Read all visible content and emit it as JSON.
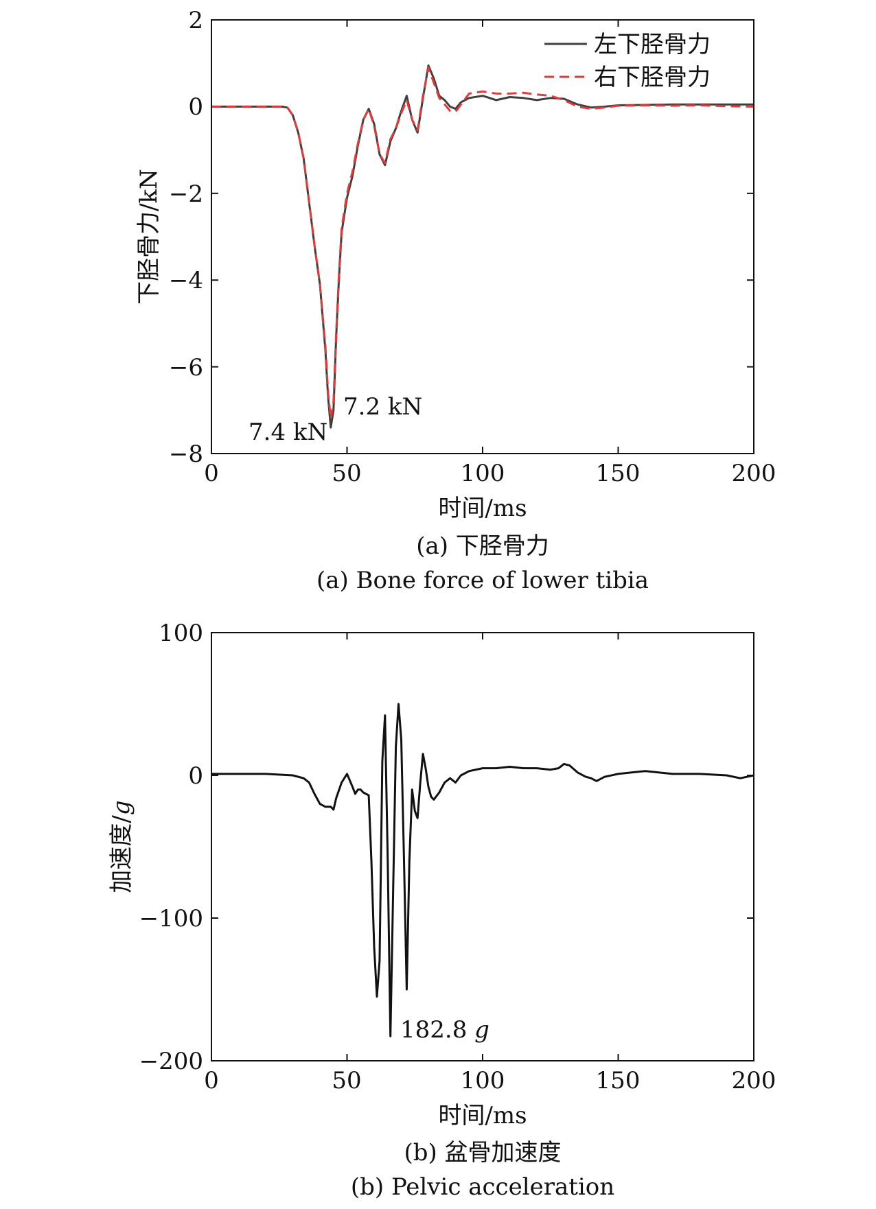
{
  "chart_data": [
    {
      "type": "line",
      "xlabel": "时间/ms",
      "ylabel": "下胫骨力/kN",
      "xlim": [
        0,
        200
      ],
      "ylim": [
        -8,
        2
      ],
      "xticks": [
        0,
        50,
        100,
        150,
        200
      ],
      "yticks": [
        2,
        0,
        -2,
        -4,
        -6,
        -8
      ],
      "xtick_labels": [
        "0",
        "50",
        "100",
        "150",
        "200"
      ],
      "ytick_labels": [
        "2",
        "0",
        "−2",
        "−4",
        "−6",
        "−8"
      ],
      "legend_position": "top-right",
      "caption_cn": "(a) 下胫骨力",
      "caption_en": "(a)  Bone force of lower tibia",
      "annotations": [
        {
          "text": "7.4 kN",
          "x": 44.5,
          "y": -7.4
        },
        {
          "text": "7.2 kN",
          "x": 44.5,
          "y": -7.2
        }
      ],
      "series": [
        {
          "name": "左下胫骨力",
          "color": "#3f3f3f",
          "style": "solid",
          "x": [
            0,
            26,
            28,
            30,
            32,
            34,
            36,
            38,
            40,
            42,
            43,
            44,
            45,
            46,
            47,
            48,
            50,
            52,
            54,
            56,
            58,
            60,
            62,
            64,
            66,
            68,
            70,
            72,
            74,
            76,
            78,
            80,
            82,
            84,
            86,
            88,
            90,
            92,
            95,
            100,
            105,
            110,
            115,
            120,
            125,
            130,
            135,
            140,
            145,
            150,
            160,
            170,
            180,
            190,
            200
          ],
          "y": [
            0,
            0,
            -0.02,
            -0.2,
            -0.6,
            -1.2,
            -2.2,
            -3.2,
            -4.1,
            -5.6,
            -6.7,
            -7.4,
            -7.0,
            -5.3,
            -4.0,
            -2.9,
            -2.1,
            -1.6,
            -0.9,
            -0.3,
            -0.05,
            -0.4,
            -1.1,
            -1.35,
            -0.8,
            -0.5,
            -0.1,
            0.25,
            -0.3,
            -0.6,
            0.2,
            0.95,
            0.65,
            0.25,
            0.15,
            0.0,
            -0.05,
            0.1,
            0.2,
            0.25,
            0.15,
            0.22,
            0.2,
            0.15,
            0.2,
            0.18,
            0.05,
            -0.02,
            0.0,
            0.03,
            0.04,
            0.05,
            0.05,
            0.05,
            0.05
          ]
        },
        {
          "name": "右下胫骨力",
          "color": "#e03a3a",
          "style": "dashed",
          "x": [
            0,
            26,
            28,
            30,
            32,
            34,
            36,
            38,
            40,
            42,
            43,
            44,
            45,
            46,
            47,
            48,
            50,
            52,
            54,
            56,
            58,
            60,
            62,
            64,
            66,
            68,
            70,
            72,
            74,
            76,
            78,
            80,
            82,
            84,
            86,
            88,
            90,
            92,
            95,
            100,
            105,
            110,
            115,
            120,
            125,
            130,
            135,
            140,
            145,
            150,
            160,
            170,
            180,
            190,
            200
          ],
          "y": [
            0,
            0,
            -0.02,
            -0.2,
            -0.6,
            -1.2,
            -2.2,
            -3.2,
            -4.1,
            -5.5,
            -6.6,
            -7.2,
            -6.8,
            -5.2,
            -3.9,
            -2.8,
            -2.0,
            -1.5,
            -0.85,
            -0.3,
            -0.05,
            -0.45,
            -1.1,
            -1.3,
            -0.75,
            -0.5,
            -0.15,
            0.15,
            -0.3,
            -0.55,
            0.25,
            0.9,
            0.55,
            0.2,
            0.05,
            -0.1,
            -0.12,
            0.05,
            0.3,
            0.35,
            0.3,
            0.3,
            0.32,
            0.28,
            0.25,
            0.15,
            0.0,
            -0.05,
            -0.02,
            0.02,
            0.03,
            0.02,
            0.03,
            0.01,
            0.0
          ]
        }
      ]
    },
    {
      "type": "line",
      "xlabel": "时间/ms",
      "ylabel": "加速度/g",
      "ylabel_main": "加速度/",
      "ylabel_unit": "g",
      "xlim": [
        0,
        200
      ],
      "ylim": [
        -200,
        100
      ],
      "xticks": [
        0,
        50,
        100,
        150,
        200
      ],
      "yticks": [
        100,
        0,
        -100,
        -200
      ],
      "xtick_labels": [
        "0",
        "50",
        "100",
        "150",
        "200"
      ],
      "ytick_labels": [
        "100",
        "0",
        "−100",
        "−200"
      ],
      "caption_cn": "(b) 盆骨加速度",
      "caption_en": "(b) Pelvic acceleration",
      "annotations": [
        {
          "text": "182.8 g",
          "value": "182.8",
          "unit": "g",
          "x": 65,
          "y": -182.8
        }
      ],
      "series": [
        {
          "color": "#111111",
          "style": "solid",
          "x": [
            0,
            10,
            20,
            30,
            34,
            36,
            38,
            40,
            42,
            44,
            45,
            46,
            48,
            50,
            52,
            53,
            54,
            55,
            56,
            58,
            59,
            60,
            61,
            62,
            63,
            64,
            65,
            66,
            67,
            68,
            69,
            70,
            71,
            72,
            73,
            74,
            75,
            76,
            77,
            78,
            79,
            80,
            81,
            82,
            84,
            86,
            88,
            90,
            92,
            95,
            100,
            105,
            110,
            115,
            120,
            125,
            128,
            130,
            132,
            135,
            138,
            140,
            142,
            145,
            150,
            155,
            160,
            170,
            180,
            190,
            195,
            200
          ],
          "y": [
            1,
            1,
            1,
            0,
            -2,
            -5,
            -13,
            -20,
            -22,
            -22,
            -24,
            -16,
            -5,
            1,
            -8,
            -13,
            -10,
            -10,
            -12,
            -14,
            -60,
            -120,
            -155,
            -130,
            10,
            42,
            -60,
            -182.8,
            -80,
            20,
            50,
            25,
            -60,
            -150,
            -60,
            -10,
            -25,
            -30,
            -5,
            15,
            5,
            -8,
            -15,
            -17,
            -12,
            -5,
            -2,
            -5,
            0,
            3,
            5,
            5,
            6,
            5,
            5,
            4,
            5,
            8,
            7,
            2,
            -1,
            -2,
            -4,
            -1,
            1,
            2,
            3,
            1,
            1,
            0,
            -2,
            0
          ]
        }
      ]
    }
  ]
}
